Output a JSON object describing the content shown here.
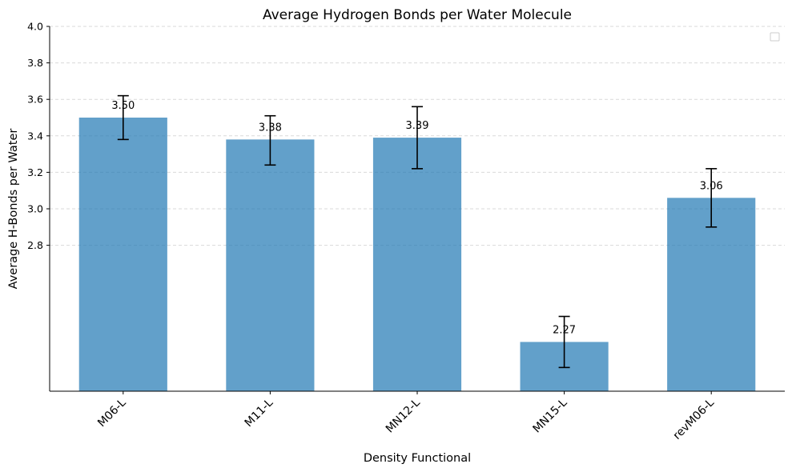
{
  "chart_data": {
    "type": "bar",
    "title": "Average Hydrogen Bonds per Water Molecule",
    "xlabel": "Density Functional",
    "ylabel": "Average H-Bonds per Water",
    "categories": [
      "M06-L",
      "M11-L",
      "MN12-L",
      "MN15-L",
      "revM06-L"
    ],
    "values": [
      3.5,
      3.38,
      3.39,
      2.27,
      3.06
    ],
    "value_labels": [
      "3.50",
      "3.38",
      "3.39",
      "2.27",
      "3.06"
    ],
    "error_low": [
      3.38,
      3.24,
      3.22,
      2.13,
      2.9
    ],
    "error_high": [
      3.62,
      3.51,
      3.56,
      2.41,
      3.22
    ],
    "ylim": [
      2.0,
      4.0
    ],
    "yticks": [
      2.8,
      3.0,
      3.2,
      3.4,
      3.6,
      3.8,
      4.0
    ],
    "ytick_labels": [
      "2.8",
      "3.0",
      "3.2",
      "3.4",
      "3.6",
      "3.8",
      "4.0"
    ],
    "grid": "y-dashed",
    "legend": "top-right (empty)",
    "bar_color": "#1f77b4",
    "bar_opacity": 0.7
  }
}
